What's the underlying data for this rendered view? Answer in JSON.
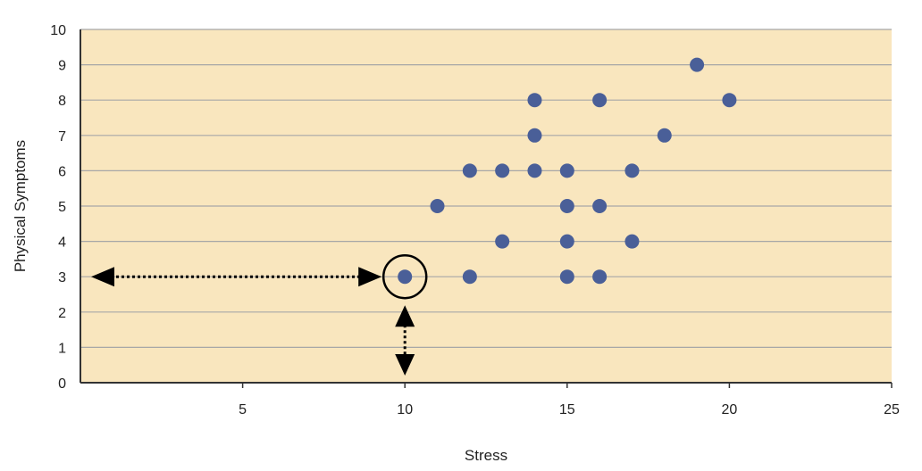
{
  "chart_data": {
    "type": "scatter",
    "xlabel": "Stress",
    "ylabel": "Physical Symptoms",
    "xlim": [
      0,
      25
    ],
    "ylim": [
      0,
      10
    ],
    "x_ticks": [
      5,
      10,
      15,
      20,
      25
    ],
    "y_ticks": [
      0,
      1,
      2,
      3,
      4,
      5,
      6,
      7,
      8,
      9,
      10
    ],
    "grid": "horizontal",
    "points": [
      {
        "x": 10,
        "y": 3
      },
      {
        "x": 11,
        "y": 5
      },
      {
        "x": 12,
        "y": 6
      },
      {
        "x": 12,
        "y": 3
      },
      {
        "x": 13,
        "y": 6
      },
      {
        "x": 13,
        "y": 4
      },
      {
        "x": 14,
        "y": 8
      },
      {
        "x": 14,
        "y": 7
      },
      {
        "x": 14,
        "y": 6
      },
      {
        "x": 15,
        "y": 6
      },
      {
        "x": 15,
        "y": 5
      },
      {
        "x": 15,
        "y": 4
      },
      {
        "x": 15,
        "y": 3
      },
      {
        "x": 16,
        "y": 8
      },
      {
        "x": 16,
        "y": 5
      },
      {
        "x": 16,
        "y": 3
      },
      {
        "x": 17,
        "y": 6
      },
      {
        "x": 17,
        "y": 4
      },
      {
        "x": 18,
        "y": 7
      },
      {
        "x": 19,
        "y": 9
      },
      {
        "x": 20,
        "y": 8
      }
    ],
    "highlighted_point": {
      "x": 10,
      "y": 3
    },
    "colors": {
      "background": "#f9e6be",
      "point": "#4a5f98",
      "grid": "#a7a7a7",
      "axis": "#333333",
      "annotation": "#000000"
    }
  }
}
